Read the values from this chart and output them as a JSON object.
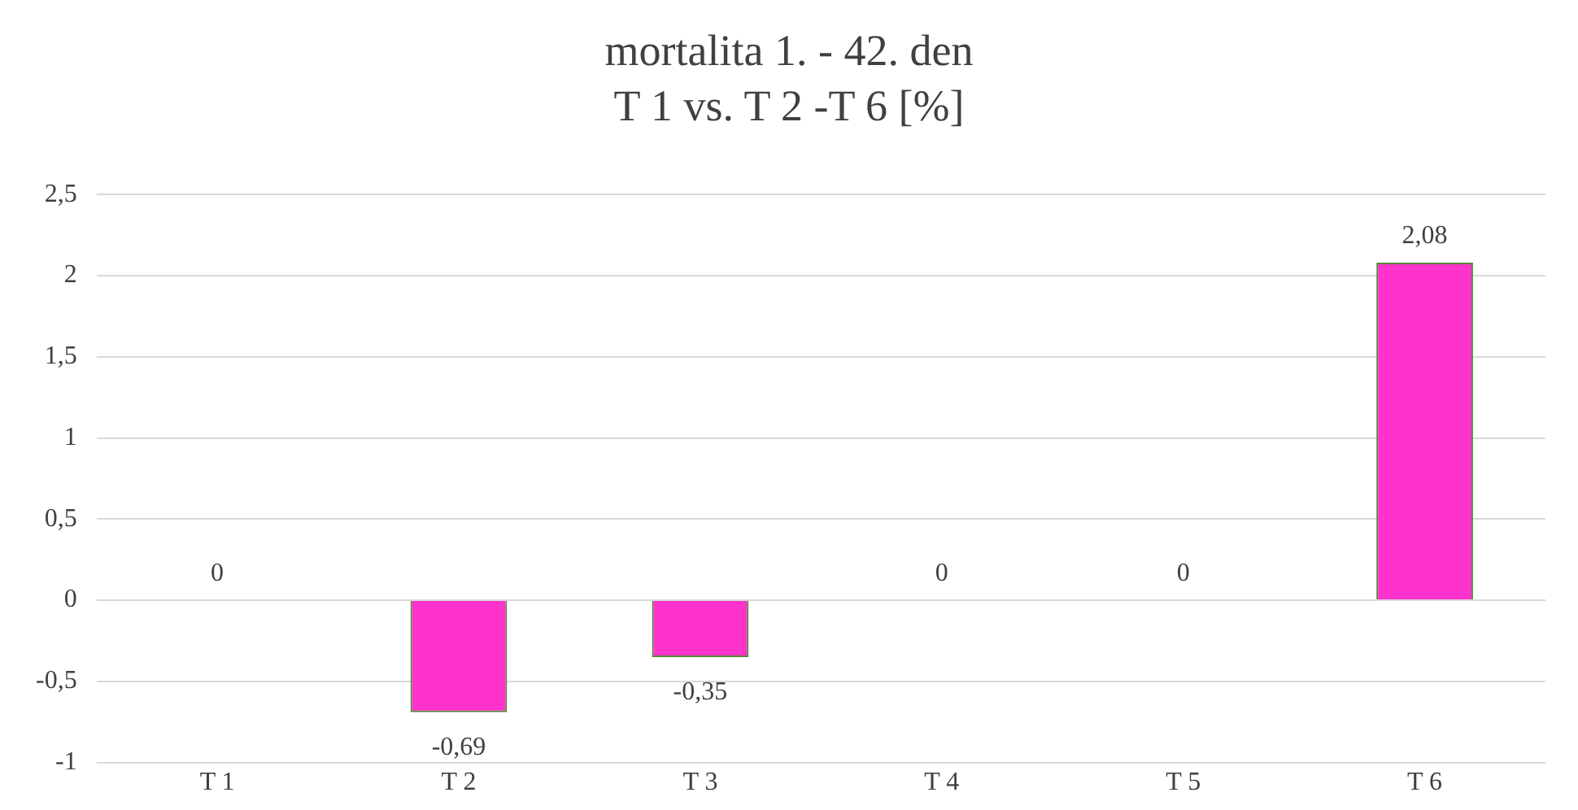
{
  "chart_data": {
    "type": "bar",
    "title": "mortalita  1. - 42. den\nT 1 vs. T 2 -T 6  [%]",
    "categories": [
      "T 1",
      "T 2",
      "T 3",
      "T 4",
      "T 5",
      "T 6"
    ],
    "values": [
      0,
      -0.69,
      -0.35,
      0,
      0,
      2.08
    ],
    "value_labels": [
      "0",
      "-0,69",
      "-0,35",
      "0",
      "0",
      "2,08"
    ],
    "color": "#ff33cc",
    "ylim": [
      -1,
      2.5
    ],
    "yticks": [
      {
        "value": -1,
        "label": "-1"
      },
      {
        "value": -0.5,
        "label": "-0,5"
      },
      {
        "value": 0,
        "label": "0"
      },
      {
        "value": 0.5,
        "label": "0,5"
      },
      {
        "value": 1,
        "label": "1"
      },
      {
        "value": 1.5,
        "label": "1,5"
      },
      {
        "value": 2,
        "label": "2"
      },
      {
        "value": 2.5,
        "label": "2,5"
      }
    ],
    "grid": "y",
    "legend": false
  }
}
